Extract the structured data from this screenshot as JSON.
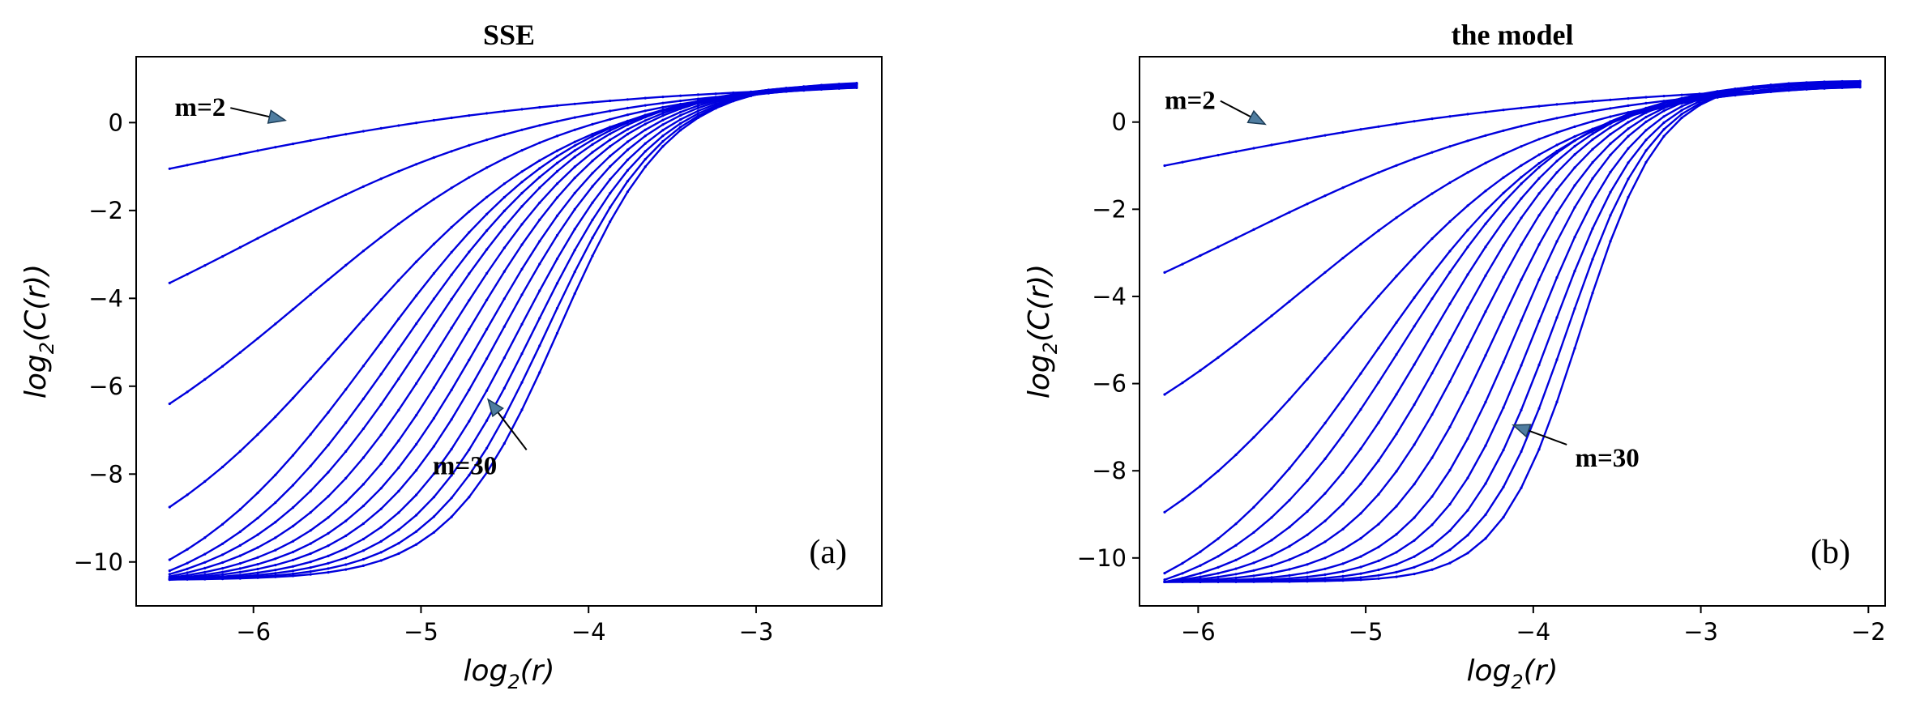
{
  "chart_data": [
    {
      "type": "line",
      "title": "SSE",
      "xlabel_base": "log",
      "xlabel_sub": "2",
      "xlabel_arg": "(r)",
      "ylabel_base": "log",
      "ylabel_sub": "2",
      "ylabel_arg": "(C(r))",
      "xlim": [
        -6.7,
        -2.25
      ],
      "ylim": [
        -11.0,
        1.5
      ],
      "x_ticks": [
        -6,
        -5,
        -4,
        -3
      ],
      "x_tick_labels": [
        "−6",
        "−5",
        "−4",
        "−3"
      ],
      "y_ticks": [
        0,
        -2,
        -4,
        -6,
        -8,
        -10
      ],
      "y_tick_labels": [
        "0",
        "−2",
        "−4",
        "−6",
        "−8",
        "−10"
      ],
      "panel_label": "(a)",
      "line_color": "#0000dd",
      "grid": false,
      "legend": "none",
      "x_range": [
        -6.5,
        -2.4
      ],
      "points_per_curve": 40,
      "curve_family": {
        "m_values": [
          2,
          4,
          6,
          8,
          10,
          12,
          14,
          16,
          18,
          20,
          22,
          24,
          26,
          28,
          30
        ],
        "y_max": 0.95,
        "y_floor": -10.4,
        "left_endpoints": [
          -1.05,
          -3.65,
          -6.4,
          -8.75,
          -9.95,
          -10.2,
          -10.28,
          -10.33,
          -10.36,
          -10.38,
          -10.39,
          -10.4,
          -10.4,
          -10.4,
          -10.4
        ],
        "transition_center": [
          -6.6,
          -6.05,
          -5.7,
          -5.45,
          -5.28,
          -5.12,
          -4.98,
          -4.85,
          -4.73,
          -4.62,
          -4.52,
          -4.42,
          -4.33,
          -4.25,
          -4.18
        ],
        "transition_width": [
          1.3,
          0.95,
          0.78,
          0.68,
          0.6,
          0.55,
          0.51,
          0.48,
          0.45,
          0.43,
          0.41,
          0.39,
          0.37,
          0.35,
          0.33
        ]
      },
      "annotations": [
        {
          "text": "m=2",
          "text_at": [
            -6.47,
            0.15
          ],
          "arrow_to": [
            -5.81,
            0.05
          ]
        },
        {
          "text": "m=30",
          "text_at": [
            -4.93,
            -8.0
          ],
          "arrow_from": [
            -4.37,
            -7.45
          ],
          "arrow_to": [
            -4.6,
            -6.3
          ]
        }
      ]
    },
    {
      "type": "line",
      "title": "the model",
      "xlabel_base": "log",
      "xlabel_sub": "2",
      "xlabel_arg": "(r)",
      "ylabel_base": "log",
      "ylabel_sub": "2",
      "ylabel_arg": "(C(r))",
      "xlim": [
        -6.35,
        -1.9
      ],
      "ylim": [
        -11.1,
        1.5
      ],
      "x_ticks": [
        -6,
        -5,
        -4,
        -3,
        -2
      ],
      "x_tick_labels": [
        "−6",
        "−5",
        "−4",
        "−3",
        "−2"
      ],
      "y_ticks": [
        0,
        -2,
        -4,
        -6,
        -8,
        -10
      ],
      "y_tick_labels": [
        "0",
        "−2",
        "−4",
        "−6",
        "−8",
        "−10"
      ],
      "panel_label": "(b)",
      "line_color": "#0000dd",
      "grid": false,
      "legend": "none",
      "x_range": [
        -6.2,
        -2.05
      ],
      "points_per_curve": 40,
      "curve_family": {
        "m_values": [
          2,
          4,
          6,
          8,
          10,
          12,
          14,
          16,
          18,
          20,
          22,
          24,
          26,
          28,
          30
        ],
        "y_max": 0.95,
        "y_floor": -10.55,
        "left_endpoints": [
          -1.0,
          -3.45,
          -6.25,
          -8.95,
          -10.35,
          -10.5,
          -10.55,
          -10.55,
          -10.55,
          -10.55,
          -10.55,
          -10.55,
          -10.55,
          -10.55,
          -10.55
        ],
        "transition_center": [
          -6.25,
          -5.75,
          -5.4,
          -5.15,
          -4.95,
          -4.78,
          -4.62,
          -4.48,
          -4.35,
          -4.22,
          -4.1,
          -3.99,
          -3.89,
          -3.8,
          -3.72
        ],
        "transition_width": [
          1.3,
          0.95,
          0.78,
          0.66,
          0.57,
          0.5,
          0.45,
          0.41,
          0.38,
          0.35,
          0.32,
          0.3,
          0.28,
          0.26,
          0.24
        ]
      },
      "annotations": [
        {
          "text": "m=2",
          "text_at": [
            -6.2,
            0.3
          ],
          "arrow_to": [
            -5.6,
            -0.05
          ]
        },
        {
          "text": "m=30",
          "text_at": [
            -3.75,
            -7.9
          ],
          "arrow_from": [
            -3.8,
            -7.4
          ],
          "arrow_to": [
            -4.12,
            -6.95
          ]
        }
      ]
    }
  ]
}
